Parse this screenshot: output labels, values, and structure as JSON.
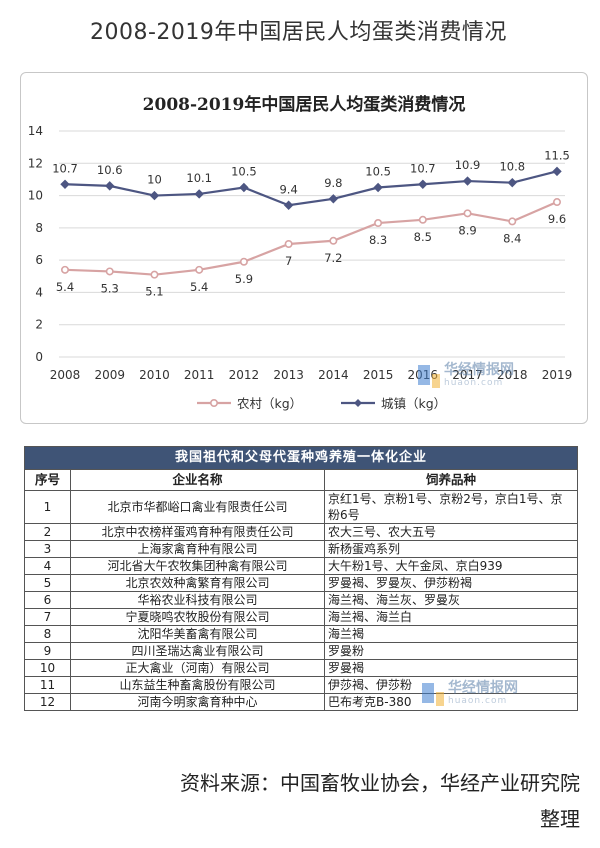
{
  "page": {
    "title": "2008-2019年中国居民人均蛋类消费情况",
    "source_line1": "资料来源：中国畜牧业协会，华经产业研究院",
    "source_line2": "整理"
  },
  "watermark": {
    "name": "华经情报网",
    "url": "huaon.com"
  },
  "chart_data": {
    "type": "line",
    "title": "2008-2019年中国居民人均蛋类消费情况",
    "x": [
      "2008",
      "2009",
      "2010",
      "2011",
      "2012",
      "2013",
      "2014",
      "2015",
      "2016",
      "2017",
      "2018",
      "2019"
    ],
    "series": [
      {
        "name": "农村（kg）",
        "values": [
          5.4,
          5.3,
          5.1,
          5.4,
          5.9,
          7,
          7.2,
          8.3,
          8.5,
          8.9,
          8.4,
          9.6
        ],
        "color": "#d7a3a3"
      },
      {
        "name": "城镇（kg）",
        "values": [
          10.7,
          10.6,
          10,
          10.1,
          10.5,
          9.4,
          9.8,
          10.5,
          10.7,
          10.9,
          10.8,
          11.5
        ],
        "color": "#4d5682"
      }
    ],
    "ylim": [
      0,
      14
    ],
    "yticks": [
      0,
      2,
      4,
      6,
      8,
      10,
      12,
      14
    ],
    "grid": true,
    "legend": "bottom"
  },
  "table": {
    "title": "我国祖代和父母代蛋种鸡养殖一体化企业",
    "headers": [
      "序号",
      "企业名称",
      "饲养品种"
    ],
    "rows": [
      {
        "idx": "1",
        "name": "北京市华都峪口禽业有限责任公司",
        "varieties": "京红1号、京粉1号、京粉2号，京白1号、京粉6号"
      },
      {
        "idx": "2",
        "name": "北京中农榜样蛋鸡育种有限责任公司",
        "varieties": "农大三号、农大五号"
      },
      {
        "idx": "3",
        "name": "上海家禽育种有限公司",
        "varieties": "新杨蛋鸡系列"
      },
      {
        "idx": "4",
        "name": "河北省大午农牧集团种禽有限公司",
        "varieties": "大午粉1号、大午金凤、京白939"
      },
      {
        "idx": "5",
        "name": "北京农效种禽繁育有限公司",
        "varieties": "罗曼褐、罗曼灰、伊莎粉褐"
      },
      {
        "idx": "6",
        "name": "华裕农业科技有限公司",
        "varieties": "海兰褐、海兰灰、罗曼灰"
      },
      {
        "idx": "7",
        "name": "宁夏晓鸣农牧股份有限公司",
        "varieties": "海兰褐、海兰白"
      },
      {
        "idx": "8",
        "name": "沈阳华美畜禽有限公司",
        "varieties": "海兰褐"
      },
      {
        "idx": "9",
        "name": "四川圣瑞达禽业有限公司",
        "varieties": "罗曼粉"
      },
      {
        "idx": "10",
        "name": "正大禽业（河南）有限公司",
        "varieties": "罗曼褐"
      },
      {
        "idx": "11",
        "name": "山东益生种畜禽股份有限公司",
        "varieties": "伊莎褐、伊莎粉"
      },
      {
        "idx": "12",
        "name": "河南今明家禽育种中心",
        "varieties": "巴布考克B-380"
      }
    ]
  }
}
